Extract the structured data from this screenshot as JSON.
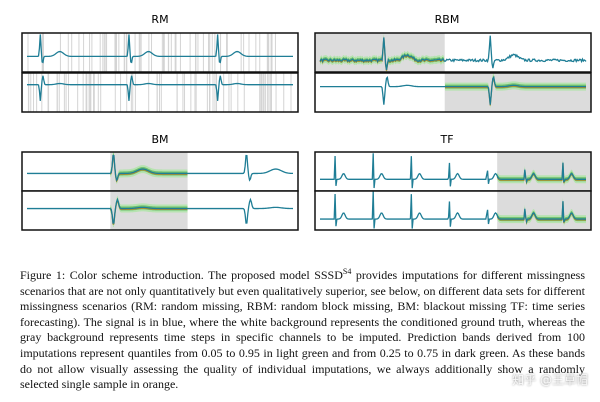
{
  "panels": [
    {
      "title": "RM"
    },
    {
      "title": "RBM"
    },
    {
      "title": "BM"
    },
    {
      "title": "TF"
    }
  ],
  "caption": {
    "label": "Figure 1:",
    "text_before": "Color scheme introduction. The proposed model SSSD",
    "superscript": "S4",
    "text_after": "provides imputations for different missingness scenarios that are not only quantitatively but even qualitatively superior, see below, on different data sets for different missingness scenarios (RM: random missing, RBM: random block missing, BM: blackout missing TF: time series forecasting). The signal is in blue, where the white background represents the conditioned ground truth, whereas the gray background represents time steps in specific channels to be imputed. Prediction bands derived from 100 imputations represent quantiles from 0.05 to 0.95 in light green and from 0.25 to 0.75 in dark green. As these bands do not allow visually assessing the quality of individual imputations, we always additionally show a randomly selected single sample in orange."
  },
  "watermark": "知乎 @王草帽"
}
